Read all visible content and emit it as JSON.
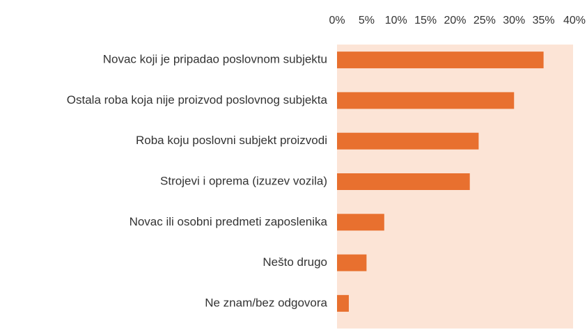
{
  "chart_data": {
    "type": "bar",
    "orientation": "horizontal",
    "categories": [
      "Novac koji je pripadao poslovnom subjektu",
      "Ostala roba koja nije proizvod poslovnog subjekta",
      "Roba koju poslovni subjekt proizvodi",
      "Strojevi i oprema (izuzev vozila)",
      "Novac ili osobni predmeti zaposlenika",
      "Nešto drugo",
      "Ne znam/bez odgovora"
    ],
    "values": [
      35,
      30,
      24,
      22.5,
      8,
      5,
      2
    ],
    "color": "#e8702f",
    "plot_background": "#fce4d6",
    "xlim": [
      0,
      40
    ],
    "xticks": [
      {
        "value": 0,
        "label": "0%"
      },
      {
        "value": 5,
        "label": "5%"
      },
      {
        "value": 10,
        "label": "10%"
      },
      {
        "value": 15,
        "label": "15%"
      },
      {
        "value": 20,
        "label": "20%"
      },
      {
        "value": 25,
        "label": "25%"
      },
      {
        "value": 30,
        "label": "30%"
      },
      {
        "value": 35,
        "label": "35%"
      },
      {
        "value": 40,
        "label": "40%"
      }
    ],
    "grid": false
  }
}
